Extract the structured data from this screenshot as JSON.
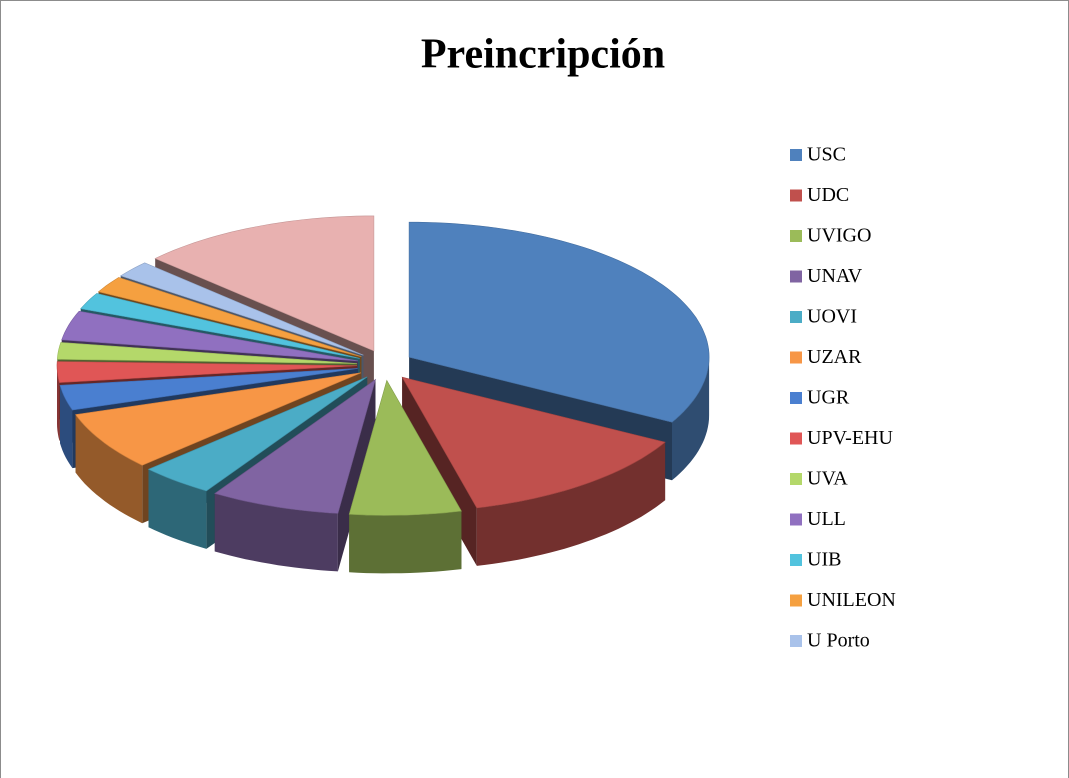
{
  "chart_data": {
    "type": "pie",
    "title": "Preincripción",
    "categories": [
      "USC",
      "UDC",
      "UVIGO",
      "UNAV",
      "UOVI",
      "UZAR",
      "UGR",
      "UPV-EHU",
      "UVA",
      "ULL",
      "UIB",
      "UNILEON",
      "U Porto",
      null
    ],
    "values": [
      33,
      13,
      6,
      7,
      4,
      7,
      3,
      2.5,
      2,
      3.5,
      2,
      2,
      2,
      13
    ],
    "colors": [
      "#4f81bd",
      "#c0504d",
      "#9bbb59",
      "#8064a2",
      "#4bacc6",
      "#f79646",
      "#4a7fd0",
      "#e05656",
      "#b4d86a",
      "#9070c0",
      "#52c3de",
      "#f5a040",
      "#a9c2ea",
      "#e8b1b0"
    ]
  }
}
